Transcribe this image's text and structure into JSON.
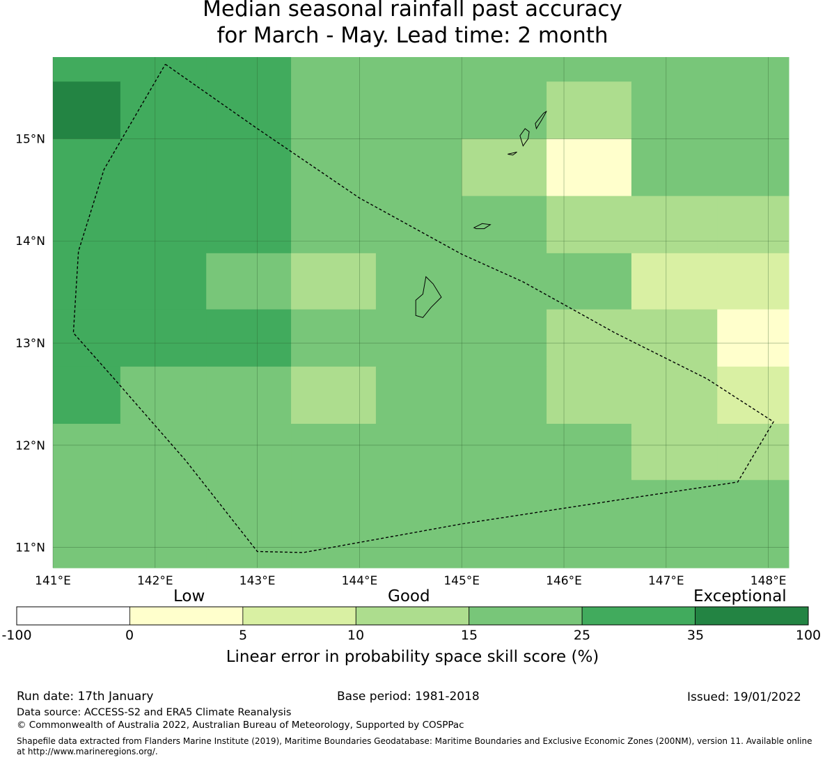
{
  "title": {
    "line1": "Median seasonal rainfall past accuracy",
    "line2": "for March - May. Lead time: 2 month"
  },
  "map": {
    "lon_range": [
      141.0,
      148.2
    ],
    "lat_range": [
      10.8,
      15.8
    ],
    "lon_ticks": [
      141,
      142,
      143,
      144,
      145,
      146,
      147,
      148
    ],
    "lon_tick_labels": [
      "141°E",
      "142°E",
      "143°E",
      "144°E",
      "145°E",
      "146°E",
      "147°E",
      "148°E"
    ],
    "lat_ticks": [
      15,
      14,
      13,
      12,
      11
    ],
    "lat_tick_labels": [
      "15°N",
      "14°N",
      "13°N",
      "12°N",
      "11°N"
    ],
    "grid_lon_edges": [
      141.0,
      141.66,
      142.5,
      143.33,
      144.16,
      145.0,
      145.83,
      146.66,
      147.5,
      148.2
    ],
    "grid_lat_edges": [
      15.8,
      15.56,
      15.0,
      14.44,
      13.88,
      13.33,
      12.77,
      12.21,
      11.66,
      10.8
    ],
    "skill_cells": [
      [
        25,
        25,
        25,
        15,
        15,
        15,
        15,
        15,
        15
      ],
      [
        35,
        25,
        25,
        15,
        15,
        15,
        10,
        15,
        15
      ],
      [
        25,
        25,
        25,
        15,
        15,
        10,
        0,
        15,
        15
      ],
      [
        25,
        25,
        25,
        15,
        15,
        15,
        10,
        10,
        10
      ],
      [
        25,
        25,
        15,
        10,
        15,
        15,
        15,
        5,
        5
      ],
      [
        25,
        25,
        25,
        15,
        15,
        15,
        10,
        10,
        0
      ],
      [
        25,
        15,
        15,
        10,
        15,
        15,
        10,
        10,
        5
      ],
      [
        15,
        15,
        15,
        15,
        15,
        15,
        15,
        10,
        10
      ],
      [
        15,
        15,
        15,
        15,
        15,
        15,
        15,
        15,
        15
      ]
    ],
    "eez_boundary": [
      [
        142.1,
        15.73
      ],
      [
        143.0,
        15.1
      ],
      [
        144.0,
        14.42
      ],
      [
        145.0,
        13.87
      ],
      [
        145.6,
        13.6
      ],
      [
        146.5,
        13.1
      ],
      [
        147.4,
        12.65
      ],
      [
        148.05,
        12.23
      ],
      [
        147.7,
        11.64
      ],
      [
        146.5,
        11.46
      ],
      [
        145.0,
        11.23
      ],
      [
        143.45,
        10.95
      ],
      [
        143.0,
        10.96
      ],
      [
        142.3,
        11.85
      ],
      [
        141.6,
        12.65
      ],
      [
        141.2,
        13.1
      ],
      [
        141.25,
        13.9
      ],
      [
        141.5,
        14.7
      ],
      [
        142.1,
        15.73
      ]
    ],
    "islands": [
      [
        [
          144.65,
          13.65
        ],
        [
          144.72,
          13.58
        ],
        [
          144.8,
          13.45
        ],
        [
          144.7,
          13.35
        ],
        [
          144.62,
          13.25
        ],
        [
          144.55,
          13.27
        ],
        [
          144.55,
          13.42
        ],
        [
          144.62,
          13.48
        ],
        [
          144.65,
          13.65
        ]
      ],
      [
        [
          145.12,
          14.13
        ],
        [
          145.2,
          14.17
        ],
        [
          145.28,
          14.16
        ],
        [
          145.22,
          14.12
        ],
        [
          145.14,
          14.12
        ],
        [
          145.12,
          14.13
        ]
      ],
      [
        [
          145.6,
          14.93
        ],
        [
          145.65,
          15.0
        ],
        [
          145.66,
          15.07
        ],
        [
          145.62,
          15.1
        ],
        [
          145.57,
          15.03
        ],
        [
          145.6,
          14.93
        ]
      ],
      [
        [
          145.73,
          15.1
        ],
        [
          145.78,
          15.18
        ],
        [
          145.83,
          15.27
        ],
        [
          145.8,
          15.25
        ],
        [
          145.72,
          15.15
        ],
        [
          145.73,
          15.1
        ]
      ],
      [
        [
          145.45,
          14.85
        ],
        [
          145.54,
          14.87
        ],
        [
          145.5,
          14.84
        ],
        [
          145.45,
          14.85
        ]
      ]
    ],
    "colors": {
      "ocean_bg": "#7ac67a",
      "land_outline": "#000000",
      "boundary": "#000000",
      "grid": "#2a5a2a"
    }
  },
  "colorbar": {
    "bounds": [
      -100,
      0,
      5,
      10,
      15,
      25,
      35,
      100
    ],
    "tick_labels": [
      "-100",
      "0",
      "5",
      "10",
      "15",
      "25",
      "35",
      "100"
    ],
    "colors": [
      "#ffffff",
      "#ffffcc",
      "#d9f0a3",
      "#addd8e",
      "#78c679",
      "#41ab5d",
      "#238443"
    ],
    "category_labels": [
      "Low",
      "Good",
      "Exceptional"
    ],
    "title": "Linear error in probability space skill score (%)"
  },
  "footer": {
    "run_date": "Run date: 17th January",
    "base_period": "Base period: 1981-2018",
    "issued": "Issued: 19/01/2022",
    "data_source": "Data source: ACCESS-S2 and ERA5 Climate Reanalysis",
    "copyright": "© Commonwealth of Australia 2022, Australian Bureau of Meteorology, Supported by COSPPac",
    "shapefile_line1": "Shapefile data extracted from Flanders Marine Institute (2019), Maritime Boundaries Geodatabase: Maritime Boundaries and Exclusive Economic Zones (200NM), version 11. Available online",
    "shapefile_line2": "at http://www.marineregions.org/."
  }
}
